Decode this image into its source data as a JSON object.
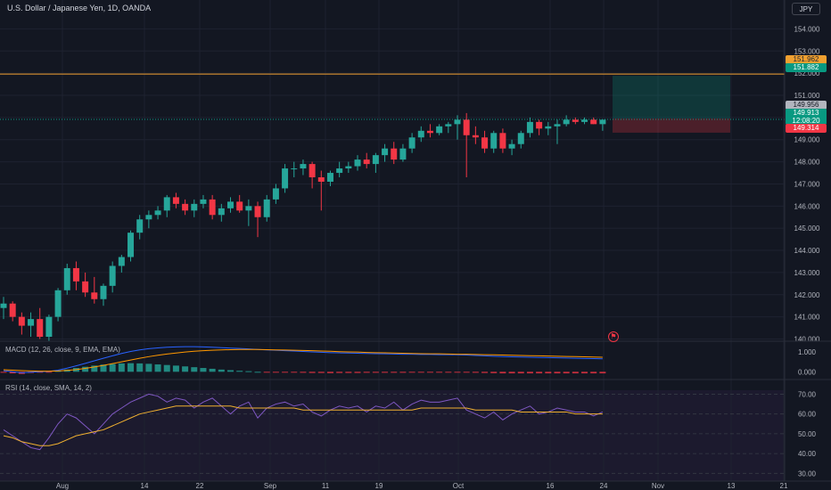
{
  "header": {
    "symbol": "U.S. Dollar / Japanese Yen, 1D, OANDA",
    "currency": "JPY"
  },
  "badges": {
    "target": "151.962",
    "entry_top": "151.882",
    "current": "149.956",
    "last_price": "149.913",
    "countdown": "12:08:20",
    "stop": "149.314"
  },
  "indicators": {
    "macd_label": "MACD (12, 26, close, 9, EMA, EMA)",
    "rsi_label": "RSI (14, close, SMA, 14, 2)"
  },
  "colors": {
    "up": "#26a69a",
    "down": "#f23645",
    "horizontal_line": "#f0a030",
    "macd_line": "#2962ff",
    "signal_line": "#ff9800",
    "rsi_line": "#7e57c2",
    "rsi_ma": "#f0b030"
  },
  "chart_data": {
    "type": "candlestick",
    "title": "U.S. Dollar / Japanese Yen, 1D, OANDA",
    "y_ticks": [
      "154.000",
      "153.000",
      "152.000",
      "151.000",
      "150.000",
      "149.000",
      "148.000",
      "147.000",
      "146.000",
      "145.000",
      "144.000",
      "143.000",
      "142.000",
      "141.000",
      "140.000"
    ],
    "x_ticks": [
      "Aug",
      "14",
      "22",
      "Sep",
      "11",
      "19",
      "Oct",
      "16",
      "24",
      "Nov",
      "13",
      "21"
    ],
    "ylim": [
      139.9,
      154.5
    ],
    "horizontal_line": 151.962,
    "position": {
      "entry": 149.956,
      "target": 151.882,
      "stop": 149.314
    },
    "candles": [
      [
        141.4,
        141.9,
        140.9,
        141.6
      ],
      [
        141.6,
        141.7,
        140.8,
        141.0
      ],
      [
        141.0,
        141.2,
        140.2,
        140.6
      ],
      [
        140.6,
        141.2,
        140.1,
        140.9
      ],
      [
        140.9,
        141.4,
        140.0,
        140.1
      ],
      [
        140.1,
        141.1,
        139.9,
        141.0
      ],
      [
        141.0,
        142.3,
        140.8,
        142.2
      ],
      [
        142.2,
        143.4,
        142.0,
        143.2
      ],
      [
        143.2,
        143.5,
        142.2,
        142.6
      ],
      [
        142.6,
        143.0,
        141.9,
        142.1
      ],
      [
        142.1,
        142.8,
        141.6,
        141.8
      ],
      [
        141.8,
        142.5,
        141.5,
        142.4
      ],
      [
        142.4,
        143.5,
        142.1,
        143.3
      ],
      [
        143.3,
        143.8,
        143.0,
        143.7
      ],
      [
        143.7,
        144.9,
        143.5,
        144.8
      ],
      [
        144.8,
        145.6,
        144.5,
        145.4
      ],
      [
        145.4,
        145.8,
        145.0,
        145.6
      ],
      [
        145.6,
        146.0,
        145.4,
        145.8
      ],
      [
        145.8,
        146.5,
        145.5,
        146.4
      ],
      [
        146.4,
        146.6,
        145.9,
        146.1
      ],
      [
        146.1,
        146.3,
        145.6,
        145.8
      ],
      [
        145.8,
        146.3,
        145.5,
        146.1
      ],
      [
        146.1,
        146.5,
        145.9,
        146.3
      ],
      [
        146.3,
        146.5,
        145.4,
        145.6
      ],
      [
        145.6,
        146.1,
        145.3,
        145.9
      ],
      [
        145.9,
        146.4,
        145.7,
        146.2
      ],
      [
        146.2,
        146.5,
        145.7,
        145.8
      ],
      [
        145.8,
        146.3,
        145.1,
        146.0
      ],
      [
        146.0,
        146.2,
        144.6,
        145.5
      ],
      [
        145.5,
        146.5,
        145.3,
        146.3
      ],
      [
        146.3,
        147.0,
        146.1,
        146.8
      ],
      [
        146.8,
        147.9,
        146.6,
        147.7
      ],
      [
        147.7,
        148.0,
        147.3,
        147.7
      ],
      [
        147.7,
        148.1,
        147.4,
        147.9
      ],
      [
        147.9,
        148.0,
        146.8,
        147.3
      ],
      [
        147.3,
        147.6,
        145.8,
        147.1
      ],
      [
        147.1,
        147.6,
        146.9,
        147.5
      ],
      [
        147.5,
        148.0,
        147.3,
        147.7
      ],
      [
        147.7,
        148.0,
        147.5,
        147.8
      ],
      [
        147.8,
        148.3,
        147.6,
        148.1
      ],
      [
        148.1,
        148.4,
        147.7,
        147.9
      ],
      [
        147.9,
        148.4,
        147.5,
        148.3
      ],
      [
        148.3,
        148.8,
        148.0,
        148.6
      ],
      [
        148.6,
        148.9,
        147.9,
        148.1
      ],
      [
        148.1,
        148.8,
        148.0,
        148.6
      ],
      [
        148.6,
        149.3,
        148.4,
        149.1
      ],
      [
        149.1,
        149.6,
        148.9,
        149.4
      ],
      [
        149.4,
        149.7,
        149.1,
        149.3
      ],
      [
        149.3,
        149.7,
        149.2,
        149.6
      ],
      [
        149.6,
        149.8,
        149.3,
        149.7
      ],
      [
        149.7,
        150.1,
        149.0,
        149.9
      ],
      [
        149.9,
        150.2,
        147.3,
        149.2
      ],
      [
        149.2,
        149.6,
        148.8,
        149.1
      ],
      [
        149.1,
        149.4,
        148.4,
        148.6
      ],
      [
        148.6,
        149.4,
        148.4,
        149.3
      ],
      [
        149.3,
        149.5,
        148.4,
        148.6
      ],
      [
        148.6,
        149.0,
        148.3,
        148.8
      ],
      [
        148.8,
        149.4,
        148.6,
        149.3
      ],
      [
        149.3,
        150.0,
        149.1,
        149.8
      ],
      [
        149.8,
        149.9,
        149.2,
        149.5
      ],
      [
        149.5,
        149.8,
        149.2,
        149.6
      ],
      [
        149.6,
        149.9,
        148.8,
        149.7
      ],
      [
        149.7,
        150.1,
        149.6,
        149.9
      ],
      [
        149.9,
        150.0,
        149.7,
        149.8
      ],
      [
        149.8,
        150.0,
        149.7,
        149.9
      ],
      [
        149.9,
        150.0,
        149.7,
        149.7
      ],
      [
        149.7,
        149.9,
        149.4,
        149.9
      ]
    ],
    "macd": {
      "ylim": [
        -0.3,
        1.4
      ],
      "y_ticks": [
        "1.000",
        "0.000"
      ],
      "macd_line": [
        0.05,
        0.0,
        -0.05,
        -0.02,
        0.0,
        0.02,
        0.08,
        0.18,
        0.3,
        0.42,
        0.55,
        0.68,
        0.8,
        0.92,
        1.02,
        1.1,
        1.16,
        1.2,
        1.23,
        1.25,
        1.26,
        1.26,
        1.25,
        1.23,
        1.21,
        1.19,
        1.17,
        1.15,
        1.12,
        1.1,
        1.08,
        1.06,
        1.04,
        1.02,
        1.0,
        0.98,
        0.96,
        0.95,
        0.94,
        0.93,
        0.92,
        0.91,
        0.9,
        0.89,
        0.88,
        0.88,
        0.87,
        0.87,
        0.86,
        0.86,
        0.85,
        0.84,
        0.82,
        0.8,
        0.78,
        0.76,
        0.75,
        0.74,
        0.73,
        0.72,
        0.71,
        0.7,
        0.69,
        0.68,
        0.67,
        0.66,
        0.65
      ],
      "signal_line": [
        0.1,
        0.08,
        0.06,
        0.04,
        0.03,
        0.03,
        0.04,
        0.07,
        0.11,
        0.17,
        0.24,
        0.32,
        0.41,
        0.5,
        0.59,
        0.68,
        0.76,
        0.83,
        0.89,
        0.94,
        0.99,
        1.03,
        1.06,
        1.08,
        1.1,
        1.11,
        1.12,
        1.12,
        1.12,
        1.11,
        1.1,
        1.09,
        1.08,
        1.07,
        1.06,
        1.04,
        1.03,
        1.01,
        1.0,
        0.99,
        0.97,
        0.96,
        0.95,
        0.94,
        0.93,
        0.92,
        0.91,
        0.9,
        0.9,
        0.89,
        0.88,
        0.88,
        0.87,
        0.86,
        0.85,
        0.84,
        0.83,
        0.82,
        0.81,
        0.8,
        0.79,
        0.78,
        0.77,
        0.76,
        0.75,
        0.74,
        0.73
      ]
    },
    "rsi": {
      "ylim": [
        27,
        72
      ],
      "y_ticks": [
        "70.00",
        "60.00",
        "50.00",
        "40.00",
        "30.00"
      ],
      "rsi_line": [
        52,
        49,
        46,
        43,
        42,
        48,
        55,
        60,
        58,
        54,
        50,
        55,
        60,
        63,
        66,
        68,
        70,
        69,
        66,
        68,
        67,
        63,
        66,
        68,
        64,
        60,
        64,
        66,
        58,
        63,
        65,
        66,
        64,
        65,
        61,
        59,
        62,
        64,
        63,
        64,
        61,
        64,
        63,
        66,
        62,
        65,
        67,
        66,
        66,
        67,
        68,
        62,
        60,
        58,
        61,
        57,
        60,
        62,
        64,
        60,
        61,
        63,
        62,
        61,
        61,
        59,
        61
      ],
      "rsi_ma": [
        49,
        48,
        46,
        45,
        44,
        44,
        45,
        47,
        49,
        50,
        51,
        52,
        54,
        56,
        58,
        60,
        61,
        62,
        63,
        64,
        64,
        64,
        64,
        64,
        64,
        64,
        63,
        63,
        63,
        63,
        63,
        63,
        63,
        62,
        62,
        62,
        62,
        62,
        62,
        62,
        62,
        62,
        62,
        62,
        62,
        62,
        63,
        63,
        63,
        63,
        63,
        63,
        62,
        62,
        62,
        62,
        62,
        61,
        61,
        61,
        61,
        61,
        61,
        60,
        60,
        60,
        60
      ]
    }
  }
}
